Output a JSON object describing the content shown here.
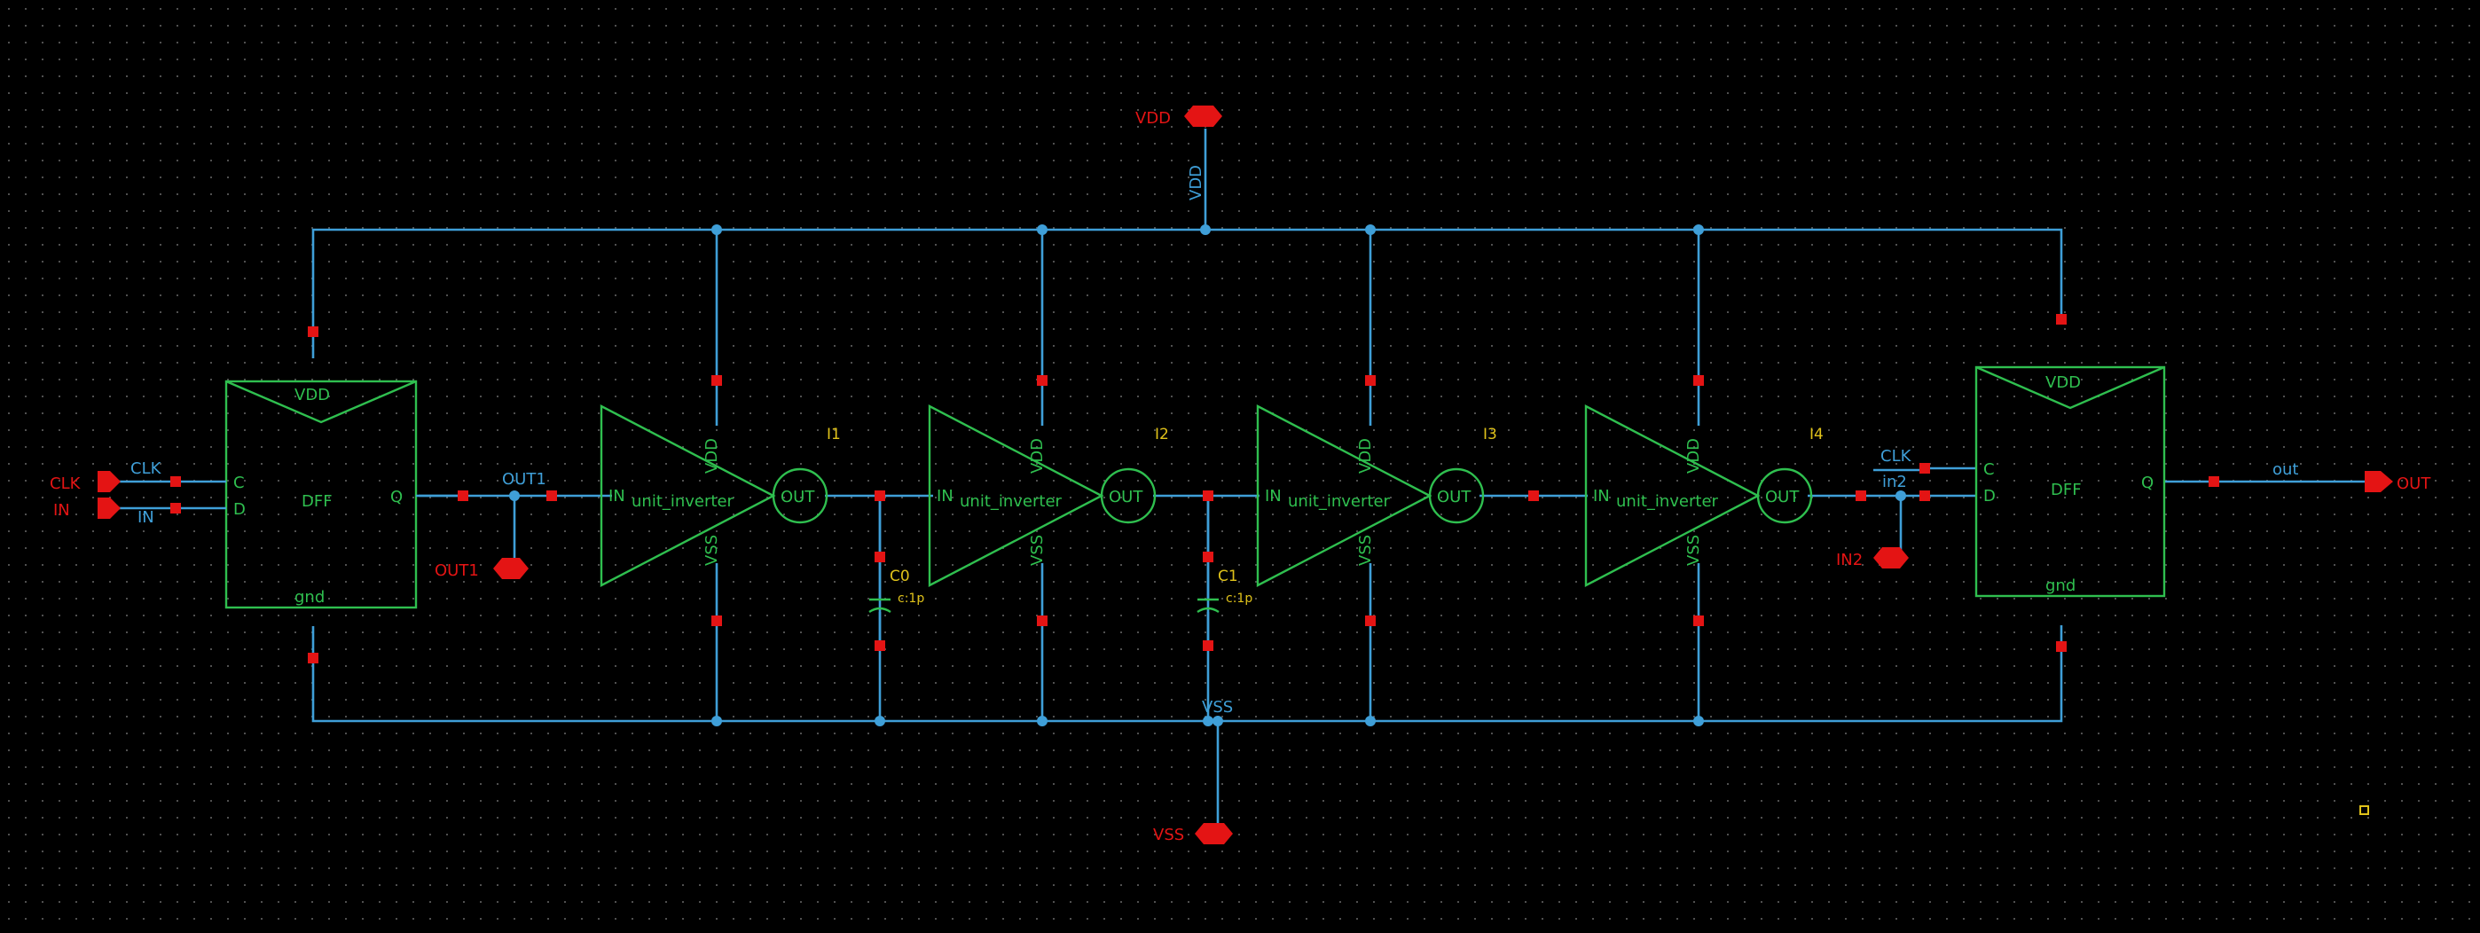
{
  "colors": {
    "background": "#000000",
    "wire": "#3f9fd8",
    "cell": "#2fbf4f",
    "pin": "#e41414",
    "instance": "#e0c21a",
    "grid_dot": "#505050"
  },
  "supply": {
    "vdd_pin": "VDD",
    "vdd_net": "VDD",
    "vss_pin": "VSS",
    "vss_net": "VSS"
  },
  "dff1": {
    "vdd": "VDD",
    "gnd": "gnd",
    "c": "C",
    "d": "D",
    "q": "Q",
    "name": "DFF",
    "clk_pin": "CLK",
    "clk_net": "CLK",
    "in_pin": "IN",
    "in_net": "IN"
  },
  "out1": {
    "net": "OUT1",
    "pin": "OUT1"
  },
  "inverters": [
    {
      "inst": "I1",
      "cell": "unit_inverter",
      "in": "IN",
      "out": "OUT",
      "vdd": "VDD",
      "vss": "VSS"
    },
    {
      "inst": "I2",
      "cell": "unit_inverter",
      "in": "IN",
      "out": "OUT",
      "vdd": "VDD",
      "vss": "VSS"
    },
    {
      "inst": "I3",
      "cell": "unit_inverter",
      "in": "IN",
      "out": "OUT",
      "vdd": "VDD",
      "vss": "VSS"
    },
    {
      "inst": "I4",
      "cell": "unit_inverter",
      "in": "IN",
      "out": "OUT",
      "vdd": "VDD",
      "vss": "VSS"
    }
  ],
  "caps": [
    {
      "inst": "C0",
      "value": "c:1p"
    },
    {
      "inst": "C1",
      "value": "c:1p"
    }
  ],
  "dff2": {
    "vdd": "VDD",
    "gnd": "gnd",
    "c": "C",
    "d": "D",
    "q": "Q",
    "name": "DFF",
    "clk_net": "CLK",
    "in2_net": "in2",
    "in2_pin": "IN2",
    "out_net": "out",
    "out_pin": "OUT"
  }
}
